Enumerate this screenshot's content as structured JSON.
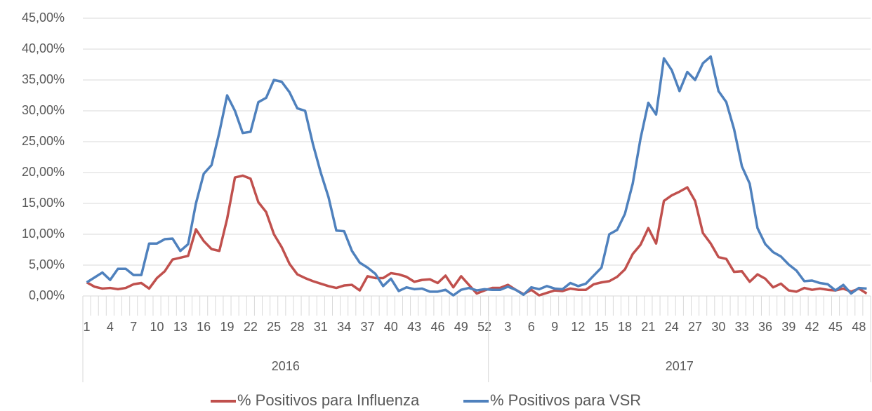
{
  "chart_data": {
    "type": "line",
    "category_groups": [
      {
        "name": "2016",
        "categories": [
          1,
          null,
          null,
          4,
          null,
          null,
          7,
          null,
          null,
          10,
          null,
          null,
          13,
          null,
          null,
          16,
          null,
          null,
          19,
          null,
          null,
          22,
          null,
          null,
          25,
          null,
          null,
          28,
          null,
          null,
          31,
          null,
          null,
          34,
          null,
          null,
          37,
          null,
          null,
          40,
          null,
          null,
          43,
          null,
          null,
          46,
          null,
          null,
          49,
          null,
          null,
          52
        ]
      },
      {
        "name": "2017",
        "categories": [
          null,
          null,
          3,
          null,
          null,
          6,
          null,
          null,
          9,
          null,
          null,
          12,
          null,
          null,
          15,
          null,
          null,
          18,
          null,
          null,
          21,
          null,
          null,
          24,
          null,
          null,
          27,
          null,
          null,
          30,
          null,
          null,
          33,
          null,
          null,
          36,
          null,
          null,
          39,
          null,
          null,
          42,
          null,
          null,
          45,
          null,
          null,
          48,
          null
        ]
      }
    ],
    "series": [
      {
        "name": "% Positivos para Influenza",
        "color": "#c0504d",
        "values": [
          2.2,
          1.5,
          1.2,
          1.3,
          1.1,
          1.3,
          1.9,
          2.1,
          1.2,
          2.9,
          4.0,
          5.9,
          6.2,
          6.5,
          10.8,
          8.9,
          7.6,
          7.3,
          12.5,
          19.2,
          19.5,
          19.0,
          15.2,
          13.6,
          10.0,
          7.9,
          5.2,
          3.5,
          2.9,
          2.4,
          2.0,
          1.6,
          1.3,
          1.7,
          1.8,
          0.9,
          3.2,
          2.9,
          2.9,
          3.7,
          3.5,
          3.1,
          2.3,
          2.6,
          2.7,
          2.1,
          3.3,
          1.4,
          3.2,
          1.8,
          0.4,
          0.9,
          1.3,
          1.3,
          1.8,
          1.0,
          0.3,
          1.0,
          0.1,
          0.5,
          0.9,
          0.8,
          1.2,
          1.0,
          1.0,
          1.9,
          2.2,
          2.4,
          3.1,
          4.3,
          6.8,
          8.3,
          11.0,
          8.5,
          15.4,
          16.3,
          16.9,
          17.6,
          15.4,
          10.2,
          8.5,
          6.3,
          6.0,
          3.9,
          4.0,
          2.3,
          3.5,
          2.8,
          1.4,
          2.0,
          0.9,
          0.7,
          1.3,
          1.0,
          1.2,
          1.0,
          0.9,
          1.2,
          0.7,
          1.2,
          0.4
        ]
      },
      {
        "name": "% Positivos para VSR",
        "color": "#4f81bd",
        "values": [
          2.2,
          3.0,
          3.8,
          2.6,
          4.4,
          4.4,
          3.4,
          3.4,
          8.5,
          8.5,
          9.2,
          9.3,
          7.3,
          8.4,
          15.0,
          19.8,
          21.2,
          26.5,
          32.5,
          30.0,
          26.4,
          26.6,
          31.4,
          32.1,
          35.0,
          34.7,
          33.0,
          30.4,
          30.0,
          24.6,
          20.0,
          16.0,
          10.6,
          10.5,
          7.3,
          5.4,
          4.6,
          3.6,
          1.6,
          2.8,
          0.8,
          1.4,
          1.1,
          1.2,
          0.7,
          0.7,
          1.0,
          0.1,
          1.0,
          1.3,
          0.9,
          1.1,
          1.0,
          1.0,
          1.5,
          1.0,
          0.2,
          1.4,
          1.1,
          1.6,
          1.2,
          1.1,
          2.1,
          1.6,
          2.0,
          3.3,
          4.6,
          10.0,
          10.7,
          13.3,
          18.2,
          25.5,
          31.3,
          29.4,
          38.5,
          36.6,
          33.2,
          36.3,
          35.0,
          37.7,
          38.8,
          33.2,
          31.4,
          27.0,
          21.0,
          18.2,
          11.0,
          8.4,
          7.1,
          6.4,
          5.1,
          4.1,
          2.4,
          2.5,
          2.1,
          1.9,
          0.9,
          1.8,
          0.4,
          1.3,
          1.2
        ]
      }
    ],
    "ylim": [
      0,
      45
    ],
    "yticks": [
      {
        "value": 0,
        "label": "0,00%"
      },
      {
        "value": 5,
        "label": "5,00%"
      },
      {
        "value": 10,
        "label": "10,00%"
      },
      {
        "value": 15,
        "label": "15,00%"
      },
      {
        "value": 20,
        "label": "20,00%"
      },
      {
        "value": 25,
        "label": "25,00%"
      },
      {
        "value": 30,
        "label": "30,00%"
      },
      {
        "value": 35,
        "label": "35,00%"
      },
      {
        "value": 40,
        "label": "40,00%"
      },
      {
        "value": 45,
        "label": "45,00%"
      }
    ],
    "grid": true,
    "legend": "bottom"
  }
}
